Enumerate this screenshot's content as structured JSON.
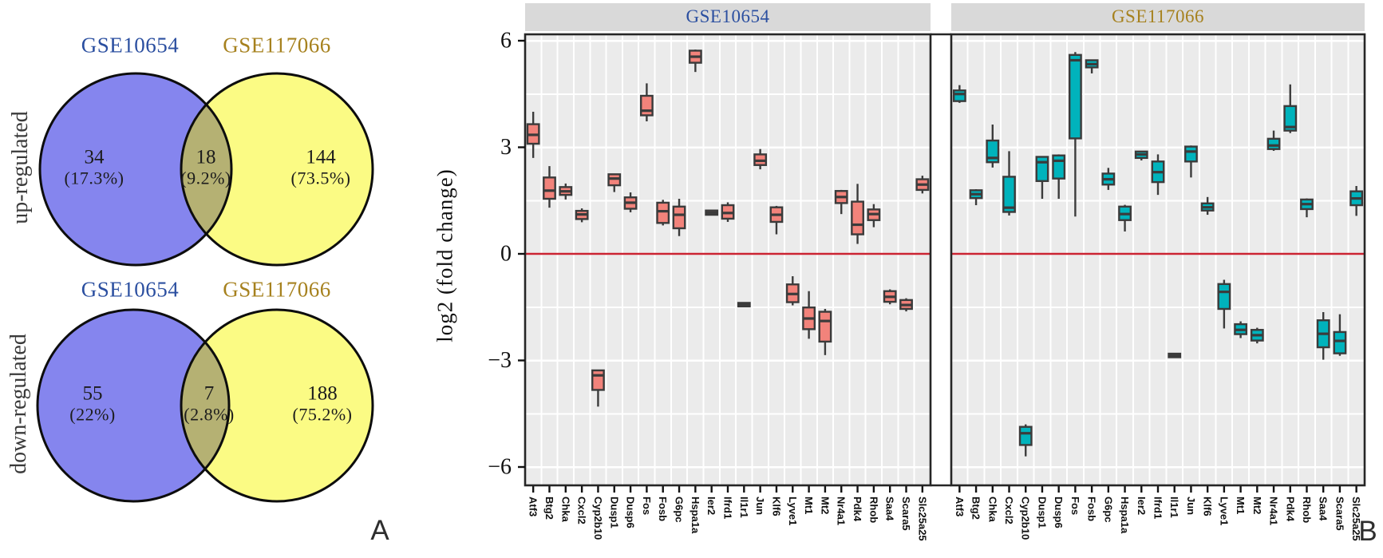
{
  "figure": {
    "panel_a_label": "A",
    "panel_b_label": "B"
  },
  "venn": {
    "set1_name": "GSE10654",
    "set2_name": "GSE117066",
    "set1_color": "#2B4FA0",
    "set2_color": "#A6811E",
    "circle_left_fill": "#8585EE",
    "circle_right_fill": "#FBFB84",
    "overlap_fill": "#B5B173",
    "outline_color": "#0d0d0d",
    "up": {
      "row_label": "up-regulated",
      "left_count": "34",
      "left_pct": "(17.3%)",
      "mid_count": "18",
      "mid_pct": "(9.2%)",
      "right_count": "144",
      "right_pct": "(73.5%)"
    },
    "down": {
      "row_label": "down-regulated",
      "left_count": "55",
      "left_pct": "(22%)",
      "mid_count": "7",
      "mid_pct": "(2.8%)",
      "right_count": "188",
      "right_pct": "(75.2%)"
    }
  },
  "chart_data": {
    "type": "boxplot",
    "title": "",
    "ylabel": "log2 (fold change)",
    "yticks": [
      6,
      3,
      0,
      -3,
      -6
    ],
    "ylim": [
      -6.5,
      6.1
    ],
    "grid": true,
    "legend_position": "none",
    "categories": [
      "Atf3",
      "Btg2",
      "Chka",
      "Cxcl2",
      "Cyp2b10",
      "Dusp1",
      "Dusp6",
      "Fos",
      "Fosb",
      "G6pc",
      "Hspa1a",
      "Ier2",
      "Ifrd1",
      "Il1r1",
      "Jun",
      "Klf6",
      "Lyve1",
      "Mt1",
      "Mt2",
      "Nr4a1",
      "Pdk4",
      "Rhob",
      "Saa4",
      "Scara5",
      "Slc25a25"
    ],
    "box_stats_order": [
      "whisker_low",
      "q1",
      "median",
      "q3",
      "whisker_high"
    ],
    "facets": [
      {
        "title": "GSE10654",
        "title_color": "#2B4FA0",
        "box_fill": "#F2837B",
        "boxes": [
          [
            2.7,
            3.1,
            3.35,
            3.65,
            4.0
          ],
          [
            1.3,
            1.55,
            1.78,
            2.15,
            2.47
          ],
          [
            1.53,
            1.66,
            1.76,
            1.88,
            1.98
          ],
          [
            0.89,
            0.98,
            1.11,
            1.21,
            1.28
          ],
          [
            -4.3,
            -3.83,
            -3.42,
            -3.28,
            -3.28
          ],
          [
            1.74,
            1.93,
            2.12,
            2.24,
            2.25
          ],
          [
            1.17,
            1.27,
            1.44,
            1.59,
            1.73
          ],
          [
            3.73,
            3.9,
            4.03,
            4.45,
            4.8
          ],
          [
            0.8,
            0.87,
            1.2,
            1.44,
            1.52
          ],
          [
            0.5,
            0.72,
            1.1,
            1.33,
            1.55
          ],
          [
            5.12,
            5.38,
            5.55,
            5.72,
            5.75
          ],
          [
            1.1,
            1.1,
            1.16,
            1.22,
            1.22
          ],
          [
            0.9,
            0.99,
            1.15,
            1.37,
            1.45
          ],
          [
            -1.48,
            -1.48,
            -1.43,
            -1.38,
            -1.38
          ],
          [
            2.38,
            2.5,
            2.62,
            2.8,
            2.95
          ],
          [
            0.55,
            0.9,
            1.1,
            1.31,
            1.35
          ],
          [
            -1.45,
            -1.36,
            -1.13,
            -0.86,
            -0.63
          ],
          [
            -2.39,
            -2.12,
            -1.82,
            -1.51,
            -1.05
          ],
          [
            -2.85,
            -2.47,
            -1.89,
            -1.63,
            -1.55
          ],
          [
            1.12,
            1.43,
            1.6,
            1.77,
            1.8
          ],
          [
            0.28,
            0.55,
            0.82,
            1.47,
            1.97
          ],
          [
            0.75,
            0.95,
            1.12,
            1.25,
            1.4
          ],
          [
            -1.42,
            -1.35,
            -1.21,
            -1.05,
            -1.0
          ],
          [
            -1.62,
            -1.55,
            -1.44,
            -1.3,
            -1.25
          ],
          [
            1.7,
            1.8,
            1.95,
            2.1,
            2.2
          ]
        ]
      },
      {
        "title": "GSE117066",
        "title_color": "#A6811E",
        "box_fill": "#00B3BC",
        "boxes": [
          [
            4.25,
            4.3,
            4.5,
            4.6,
            4.75
          ],
          [
            1.37,
            1.57,
            1.68,
            1.79,
            1.82
          ],
          [
            2.43,
            2.58,
            2.7,
            3.19,
            3.64
          ],
          [
            1.08,
            1.18,
            1.3,
            2.17,
            2.89
          ],
          [
            -5.7,
            -5.38,
            -5.05,
            -4.87,
            -4.8
          ],
          [
            1.55,
            2.05,
            2.58,
            2.73,
            2.75
          ],
          [
            1.55,
            2.12,
            2.62,
            2.77,
            2.8
          ],
          [
            1.05,
            3.25,
            5.45,
            5.6,
            5.68
          ],
          [
            5.08,
            5.25,
            5.34,
            5.45,
            5.45
          ],
          [
            1.8,
            1.95,
            2.1,
            2.26,
            2.42
          ],
          [
            0.63,
            0.95,
            1.12,
            1.33,
            1.38
          ],
          [
            2.63,
            2.7,
            2.8,
            2.88,
            2.9
          ],
          [
            1.66,
            2.02,
            2.3,
            2.6,
            2.8
          ],
          [
            -2.91,
            -2.91,
            -2.86,
            -2.81,
            -2.81
          ],
          [
            2.15,
            2.6,
            2.88,
            3.02,
            3.05
          ],
          [
            1.1,
            1.22,
            1.31,
            1.42,
            1.6
          ],
          [
            -2.1,
            -1.55,
            -1.07,
            -0.85,
            -0.73
          ],
          [
            -2.37,
            -2.26,
            -2.14,
            -1.98,
            -1.9
          ],
          [
            -2.52,
            -2.44,
            -2.29,
            -2.14,
            -2.08
          ],
          [
            2.9,
            2.95,
            3.05,
            3.24,
            3.47
          ],
          [
            3.4,
            3.47,
            3.57,
            4.16,
            4.77
          ],
          [
            1.03,
            1.26,
            1.4,
            1.53,
            1.56
          ],
          [
            -2.98,
            -2.63,
            -2.25,
            -1.87,
            -1.64
          ],
          [
            -2.87,
            -2.8,
            -2.45,
            -2.2,
            -1.7
          ],
          [
            1.07,
            1.37,
            1.56,
            1.76,
            1.91
          ]
        ]
      }
    ],
    "colors": {
      "panel_bg": "#EBEBEB",
      "strip_bg": "#D9D9D9",
      "grid": "#FFFFFF",
      "zero_line": "#CB2332",
      "box_border": "#3B3B3B",
      "frame": "#262626",
      "tick_text": "#111111"
    }
  }
}
